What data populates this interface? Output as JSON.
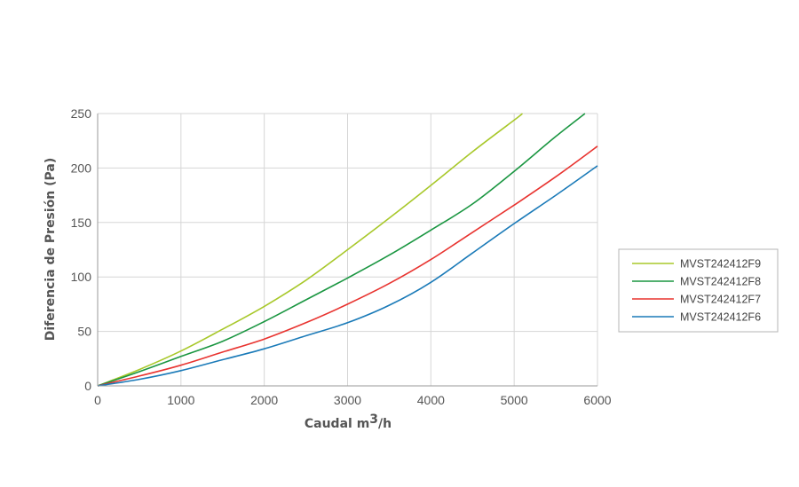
{
  "chart_data": {
    "type": "line",
    "xlabel_main": "Caudal m",
    "xlabel_sup": "3",
    "xlabel_tail": "/h",
    "ylabel": "Diferencia de Presión  (Pa)",
    "xlim": [
      0,
      6000
    ],
    "ylim": [
      0,
      250
    ],
    "xticks": [
      0,
      1000,
      2000,
      3000,
      4000,
      5000,
      6000
    ],
    "yticks": [
      0,
      50,
      100,
      150,
      200,
      250
    ],
    "grid": true,
    "legend_position": "right",
    "series": [
      {
        "name": "MVST242412F9",
        "color": "#a8c82a",
        "x": [
          0,
          500,
          1000,
          1500,
          2000,
          2500,
          3000,
          3500,
          4000,
          4500,
          5000,
          5100
        ],
        "y": [
          0,
          15,
          32,
          52,
          73,
          97,
          125,
          154,
          184,
          215,
          244,
          250
        ]
      },
      {
        "name": "MVST242412F8",
        "color": "#1a9641",
        "x": [
          0,
          500,
          1000,
          1500,
          2000,
          2500,
          3000,
          3500,
          4000,
          4500,
          5000,
          5500,
          5850
        ],
        "y": [
          0,
          13,
          27,
          41,
          59,
          79,
          99,
          120,
          143,
          167,
          197,
          229,
          250
        ]
      },
      {
        "name": "MVST242412F7",
        "color": "#e8332f",
        "x": [
          0,
          500,
          1000,
          1500,
          2000,
          2500,
          3000,
          3500,
          4000,
          4500,
          5000,
          5500,
          6000
        ],
        "y": [
          0,
          9,
          19,
          31,
          43,
          58,
          75,
          94,
          116,
          141,
          166,
          192,
          220
        ]
      },
      {
        "name": "MVST242412F6",
        "color": "#1a7ab8",
        "x": [
          0,
          500,
          1000,
          1500,
          2000,
          2500,
          3000,
          3500,
          4000,
          4500,
          5000,
          5500,
          6000
        ],
        "y": [
          0,
          6,
          14,
          24,
          34,
          46,
          58,
          74,
          95,
          122,
          149,
          175,
          202
        ]
      }
    ]
  }
}
